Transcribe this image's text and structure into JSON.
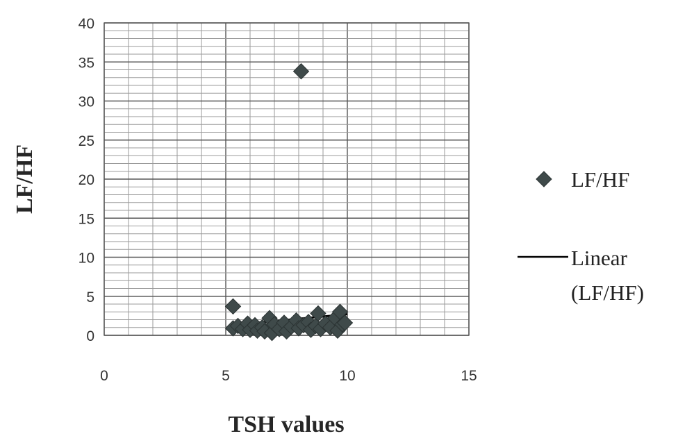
{
  "chart_data": {
    "type": "scatter",
    "title": "",
    "xlabel": "TSH values",
    "ylabel": "LF/HF",
    "xlim": [
      0,
      15
    ],
    "ylim": [
      0,
      40
    ],
    "x_ticks": [
      "0",
      "5",
      "10",
      "15"
    ],
    "y_ticks": [
      "0",
      "5",
      "10",
      "15",
      "20",
      "25",
      "30",
      "35",
      "40"
    ],
    "grid": true,
    "legend_position": "right",
    "series": [
      {
        "name": "LF/HF",
        "marker": "diamond",
        "color": "#3f4a4a",
        "points": [
          {
            "x": 5.3,
            "y": 3.7
          },
          {
            "x": 5.3,
            "y": 0.9
          },
          {
            "x": 5.5,
            "y": 1.2
          },
          {
            "x": 5.7,
            "y": 0.8
          },
          {
            "x": 5.9,
            "y": 1.5
          },
          {
            "x": 6.0,
            "y": 0.7
          },
          {
            "x": 6.2,
            "y": 1.3
          },
          {
            "x": 6.3,
            "y": 0.6
          },
          {
            "x": 6.5,
            "y": 1.0
          },
          {
            "x": 6.6,
            "y": 0.5
          },
          {
            "x": 6.8,
            "y": 2.2
          },
          {
            "x": 6.9,
            "y": 0.3
          },
          {
            "x": 7.0,
            "y": 1.4
          },
          {
            "x": 7.2,
            "y": 0.8
          },
          {
            "x": 7.4,
            "y": 1.6
          },
          {
            "x": 7.5,
            "y": 0.5
          },
          {
            "x": 7.7,
            "y": 1.1
          },
          {
            "x": 7.9,
            "y": 1.9
          },
          {
            "x": 8.0,
            "y": 0.9
          },
          {
            "x": 8.1,
            "y": 33.8
          },
          {
            "x": 8.2,
            "y": 1.3
          },
          {
            "x": 8.4,
            "y": 1.7
          },
          {
            "x": 8.5,
            "y": 0.7
          },
          {
            "x": 8.7,
            "y": 1.2
          },
          {
            "x": 8.8,
            "y": 2.8
          },
          {
            "x": 8.9,
            "y": 0.8
          },
          {
            "x": 9.1,
            "y": 1.5
          },
          {
            "x": 9.3,
            "y": 1.0
          },
          {
            "x": 9.5,
            "y": 2.2
          },
          {
            "x": 9.6,
            "y": 0.6
          },
          {
            "x": 9.7,
            "y": 3.0
          },
          {
            "x": 9.8,
            "y": 1.4
          },
          {
            "x": 9.9,
            "y": 1.6
          }
        ]
      },
      {
        "name": "Linear\n(LF/HF)",
        "type": "line",
        "color": "#000000",
        "points": [
          {
            "x": 5.2,
            "y": 1.3
          },
          {
            "x": 10.0,
            "y": 2.7
          }
        ]
      }
    ]
  }
}
